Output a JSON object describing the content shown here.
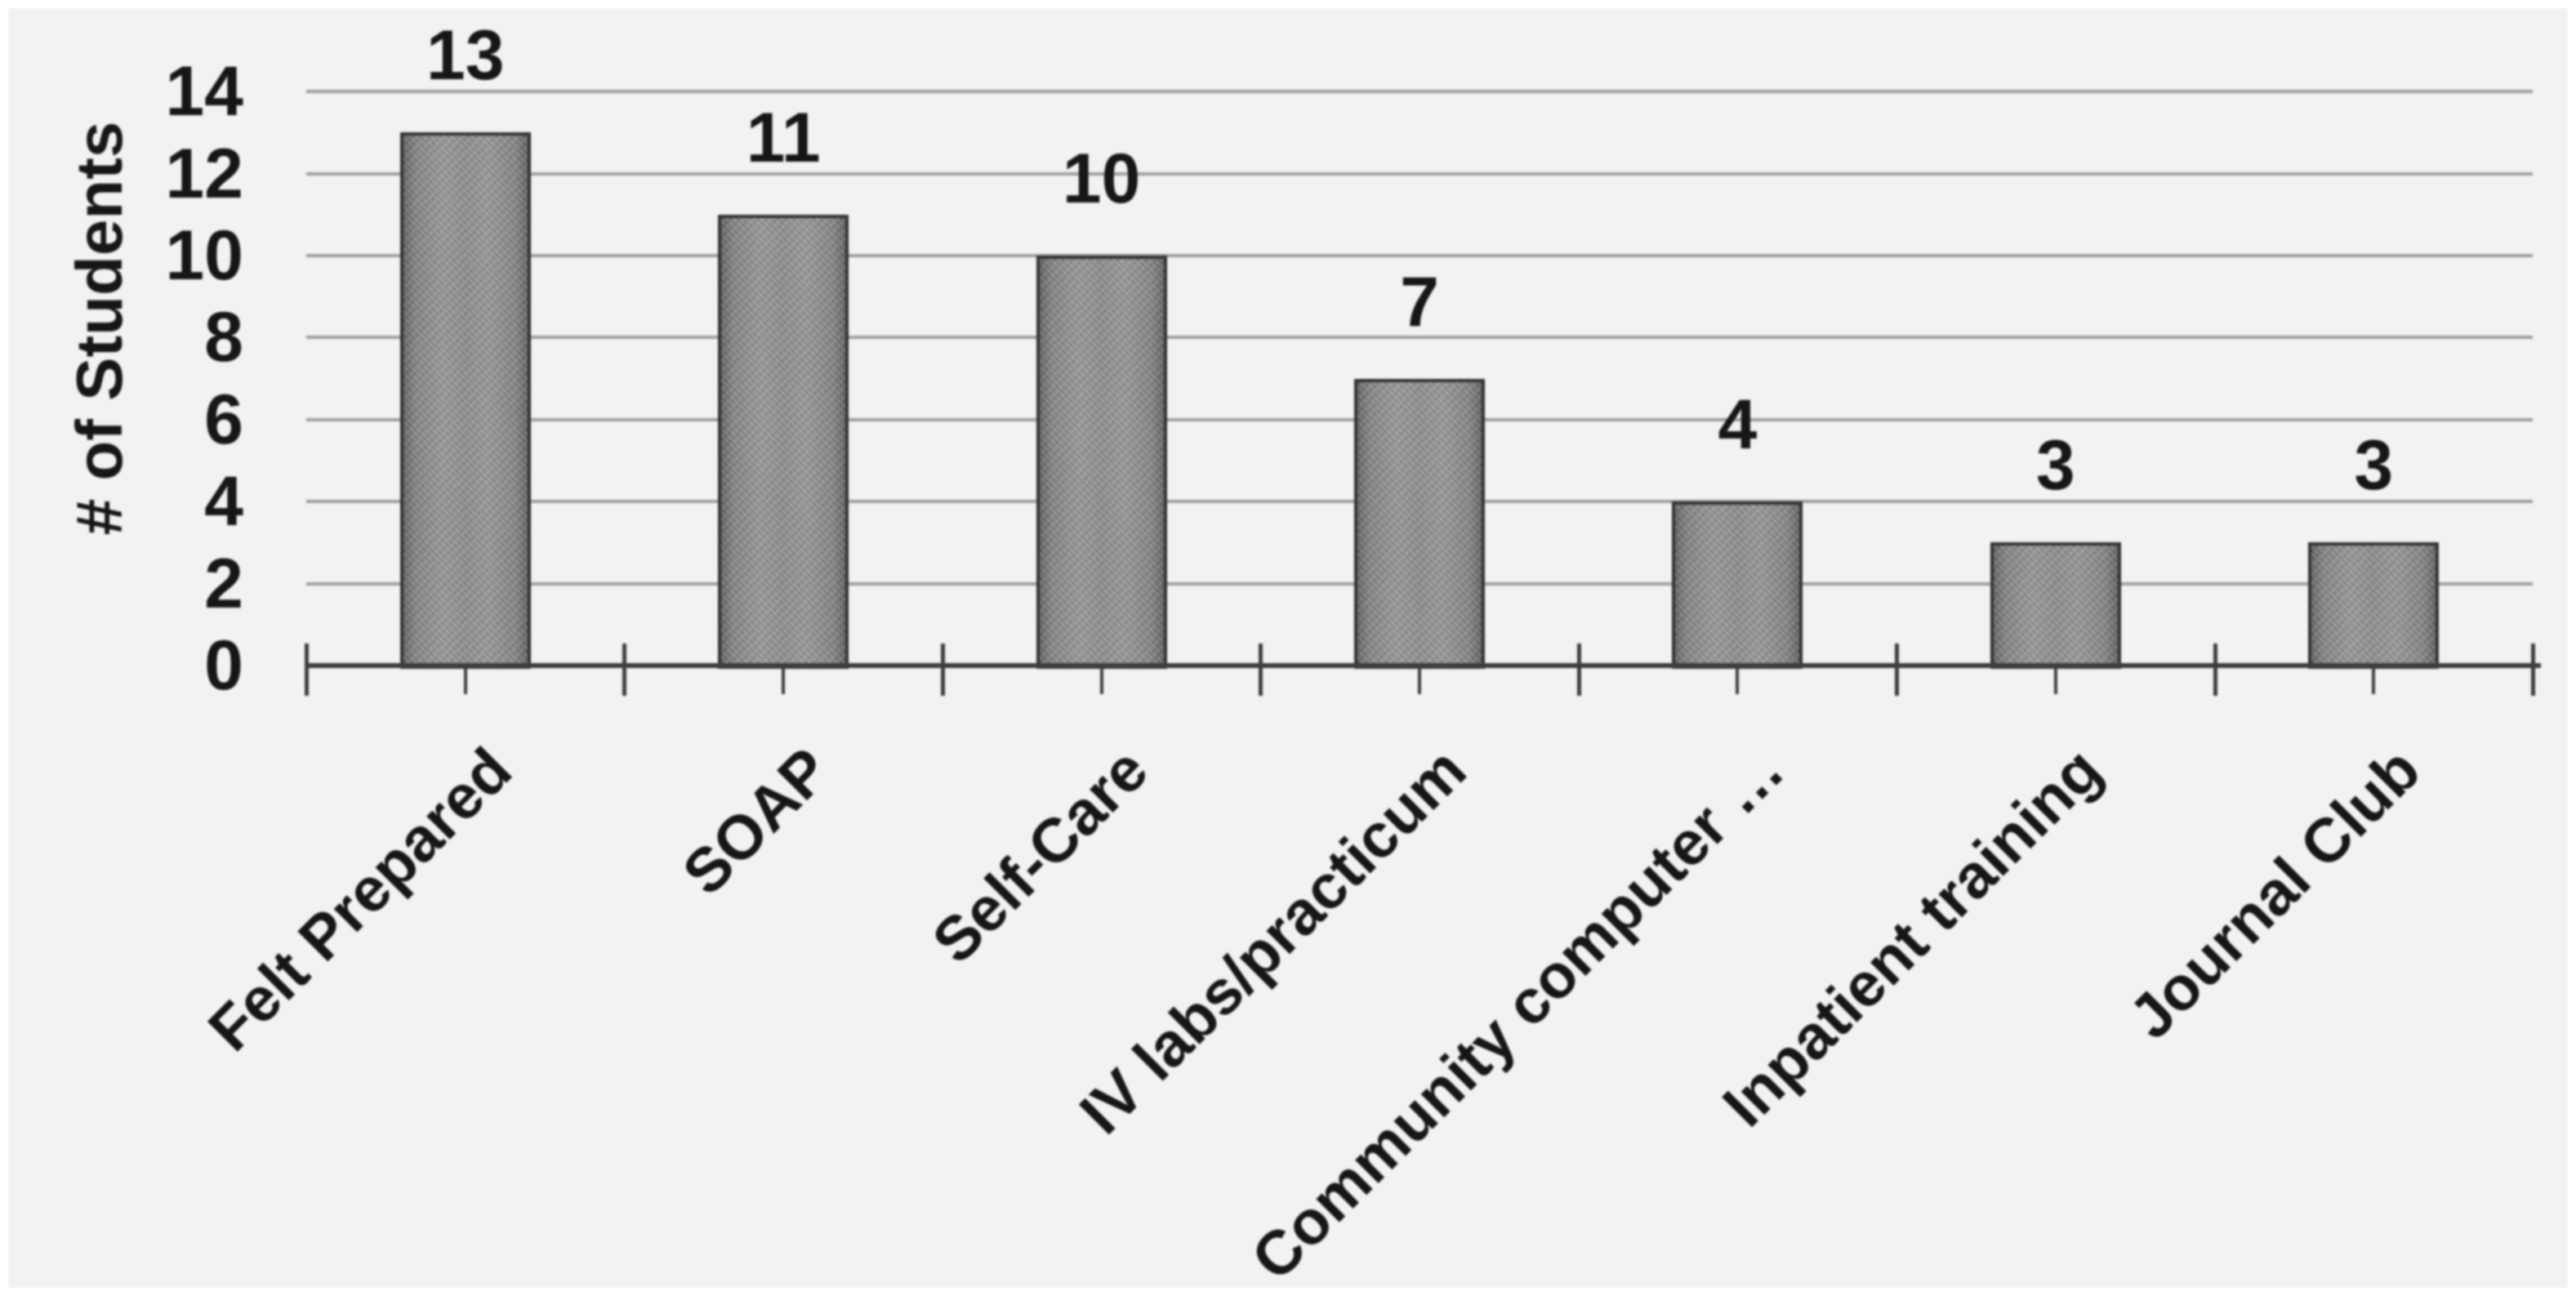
{
  "chart_data": {
    "type": "bar",
    "title": "",
    "xlabel": "",
    "ylabel": "# of Students",
    "categories": [
      "Felt Prepared",
      "SOAP",
      "Self-Care",
      "IV labs/practicum",
      "Community computer …",
      "Inpatient training",
      "Journal Club"
    ],
    "values": [
      13,
      11,
      10,
      7,
      4,
      3,
      3
    ],
    "data_labels": [
      "13",
      "11",
      "10",
      "7",
      "4",
      "3",
      "3"
    ],
    "yticks": [
      "0",
      "2",
      "4",
      "6",
      "8",
      "10",
      "12",
      "14"
    ],
    "ytick_values": [
      0,
      2,
      4,
      6,
      8,
      10,
      12,
      14
    ],
    "ylim": [
      0,
      14
    ],
    "grid": "horizontal",
    "legend": "none",
    "colors": {
      "background": "#f2f2f3",
      "bar_fill": "#8d8d8d",
      "bar_border": "#323232",
      "gridline": "#9e9e9e",
      "axis": "#3d3d3d",
      "text": "#161616"
    }
  }
}
